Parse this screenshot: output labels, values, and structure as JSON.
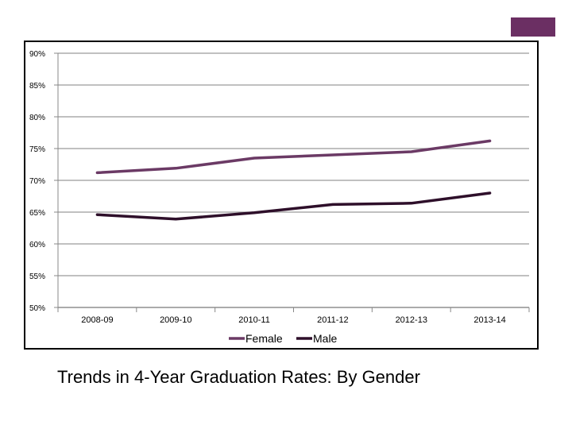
{
  "slide": {
    "caption": "Trends in 4-Year Graduation Rates:  By Gender",
    "corner_block_color": "#6b2f63"
  },
  "chart_data": {
    "type": "line",
    "title": "",
    "xlabel": "",
    "ylabel": "",
    "categories": [
      "2008-09",
      "2009-10",
      "2010-11",
      "2011-12",
      "2012-13",
      "2013-14"
    ],
    "ylim": [
      50,
      90
    ],
    "y_ticks": [
      90,
      85,
      80,
      75,
      70,
      65,
      60,
      55,
      50
    ],
    "y_tick_format": "percent",
    "grid": true,
    "legend_position": "bottom",
    "series": [
      {
        "name": "Female",
        "color": "#6b3a65",
        "values": [
          71.2,
          71.9,
          73.5,
          74.0,
          74.5,
          76.2
        ]
      },
      {
        "name": "Male",
        "color": "#2e0f2a",
        "values": [
          64.6,
          63.9,
          64.9,
          66.2,
          66.4,
          68.0
        ]
      }
    ]
  }
}
